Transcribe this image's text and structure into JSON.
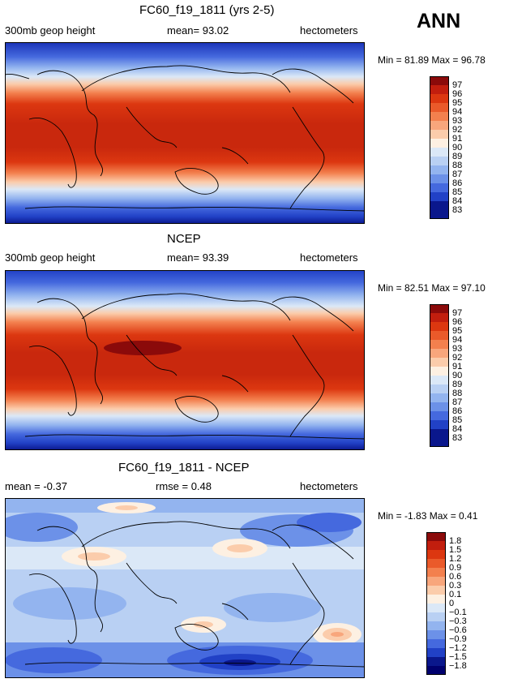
{
  "chart_data": [
    {
      "type": "heatmap",
      "title": "FC60_f19_1811 (yrs 2-5)",
      "variable": "300mb geop height",
      "mean_text": "mean=  93.02",
      "units": "hectometers",
      "min_max_text": "Min =  81.89  Max =  96.78",
      "min": 81.89,
      "max": 96.78,
      "mean": 93.02,
      "levels": [
        "97",
        "96",
        "95",
        "94",
        "93",
        "92",
        "91",
        "90",
        "89",
        "88",
        "87",
        "86",
        "85",
        "84",
        "83"
      ],
      "colors": [
        "#8b0a0a",
        "#c21e0e",
        "#dc3710",
        "#ea5a2a",
        "#f3804e",
        "#f8a67c",
        "#fbccab",
        "#fdf0e2",
        "#dbe8f7",
        "#b9d0f3",
        "#93b4ef",
        "#6c91e8",
        "#4569de",
        "#2141c6",
        "#0a178c"
      ]
    },
    {
      "type": "heatmap",
      "title": "NCEP",
      "variable": "300mb geop height",
      "mean_text": "mean=  93.39",
      "units": "hectometers",
      "min_max_text": "Min =  82.51  Max =  97.10",
      "min": 82.51,
      "max": 97.1,
      "mean": 93.39,
      "levels": [
        "97",
        "96",
        "95",
        "94",
        "93",
        "92",
        "91",
        "90",
        "89",
        "88",
        "87",
        "86",
        "85",
        "84",
        "83"
      ],
      "colors": [
        "#8b0a0a",
        "#c21e0e",
        "#dc3710",
        "#ea5a2a",
        "#f3804e",
        "#f8a67c",
        "#fbccab",
        "#fdf0e2",
        "#dbe8f7",
        "#b9d0f3",
        "#93b4ef",
        "#6c91e8",
        "#4569de",
        "#2141c6",
        "#0a178c"
      ]
    },
    {
      "type": "heatmap",
      "title": "FC60_f19_1811 - NCEP",
      "mean_text": "mean =  -0.37",
      "rmse_text": "rmse =   0.48",
      "units": "hectometers",
      "min_max_text": "Min =  -1.83  Max =    0.41",
      "min": -1.83,
      "max": 0.41,
      "mean": -0.37,
      "rmse": 0.48,
      "levels": [
        "1.8",
        "1.5",
        "1.2",
        "0.9",
        "0.6",
        "0.3",
        "0.1",
        "0",
        "−0.1",
        "−0.3",
        "−0.6",
        "−0.9",
        "−1.2",
        "−1.5",
        "−1.8"
      ],
      "colors": [
        "#8b0a0a",
        "#c21e0e",
        "#dc3710",
        "#ea5a2a",
        "#f3804e",
        "#f8a67c",
        "#fbccab",
        "#fdf0e2",
        "#dbe8f7",
        "#b9d0f3",
        "#93b4ef",
        "#6c91e8",
        "#4569de",
        "#2141c6",
        "#0a178c",
        "#00006e"
      ]
    }
  ],
  "season": "ANN"
}
